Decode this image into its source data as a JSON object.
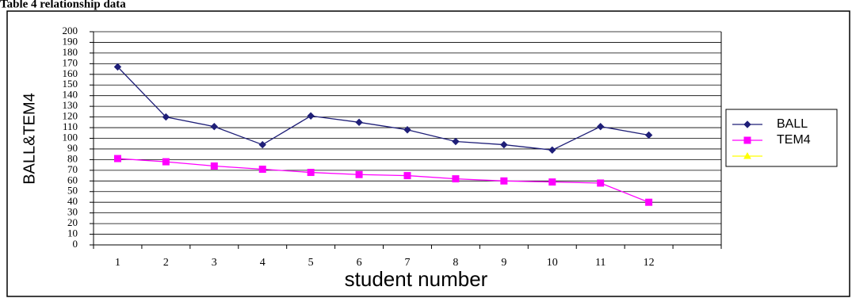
{
  "chart_data": {
    "type": "line",
    "title": "Table 4 relationship data",
    "x_label": "student number",
    "y_label": "BALL&TEM4",
    "categories": [
      "1",
      "2",
      "3",
      "4",
      "5",
      "6",
      "7",
      "8",
      "9",
      "10",
      "11",
      "12",
      null
    ],
    "series": [
      {
        "name": "BALL",
        "color": "#1f1f78",
        "marker": "diamond",
        "values": [
          167,
          120,
          111,
          94,
          121,
          115,
          108,
          97,
          94,
          89,
          111,
          103,
          null
        ]
      },
      {
        "name": "TEM4",
        "color": "#ff00ff",
        "marker": "square",
        "values": [
          81,
          78,
          74,
          71,
          68,
          66,
          65,
          62,
          60,
          59,
          58,
          40,
          null
        ]
      },
      {
        "color": "#ffff00",
        "marker": "triangle",
        "values": [
          null,
          null,
          null,
          null,
          null,
          null,
          null,
          null,
          null,
          null,
          null,
          null,
          null
        ]
      }
    ],
    "ylim": [
      0,
      200
    ],
    "yticks": [
      0,
      10,
      20,
      30,
      40,
      50,
      60,
      70,
      80,
      90,
      100,
      110,
      120,
      130,
      140,
      150,
      160,
      170,
      180,
      190,
      200
    ],
    "grid": true,
    "legend": "right"
  }
}
